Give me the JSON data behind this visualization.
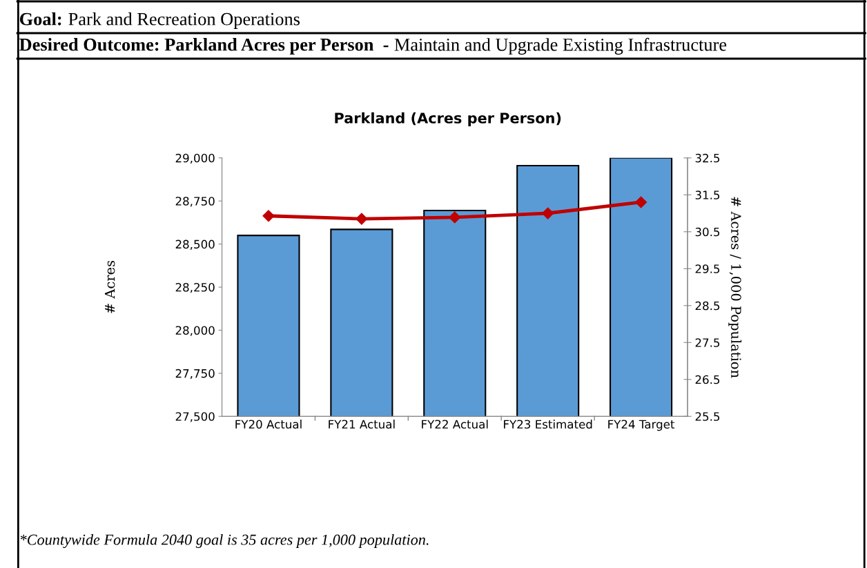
{
  "chart_data": {
    "type": "bar",
    "title": "Parkland (Acres per Person)",
    "categories": [
      "FY20 Actual",
      "FY21 Actual",
      "FY22 Actual",
      "FY23 Estimated",
      "FY24 Target"
    ],
    "series": [
      {
        "color": "#5b9bd5",
        "values": [
          28550,
          28585,
          28695,
          28955,
          29000
        ]
      },
      {
        "type": "line",
        "axis": "y2",
        "color": "#c00000",
        "marker": "diamond",
        "line_style": "solid",
        "values": [
          30.93,
          30.85,
          30.89,
          31.0,
          31.3
        ]
      }
    ],
    "ylabel": "# Acres",
    "y2label": "# Acres / 1,000 Population",
    "ylim": [
      27500,
      29000
    ],
    "yticks": [
      {
        "value": 27500,
        "label": "27,500"
      },
      {
        "value": 27750,
        "label": "27,750"
      },
      {
        "value": 28000,
        "label": "28,000"
      },
      {
        "value": 28250,
        "label": "28,250"
      },
      {
        "value": 28500,
        "label": "28,500"
      },
      {
        "value": 28750,
        "label": "28,750"
      },
      {
        "value": 29000,
        "label": "29,000"
      }
    ],
    "y2lim": [
      25.5,
      32.5
    ],
    "y2ticks": [
      25.5,
      26.5,
      27.5,
      28.5,
      29.5,
      30.5,
      31.5,
      32.5
    ],
    "grid": false,
    "legend": false,
    "annotations": [
      "Goal:",
      "Park and Recreation Operations",
      "Desired Outcome: Parkland Acres per Person  -",
      "Maintain and Upgrade Existing Infrastructure",
      "*Countywide Formula 2040 goal is 35 acres per 1,000 population."
    ]
  }
}
